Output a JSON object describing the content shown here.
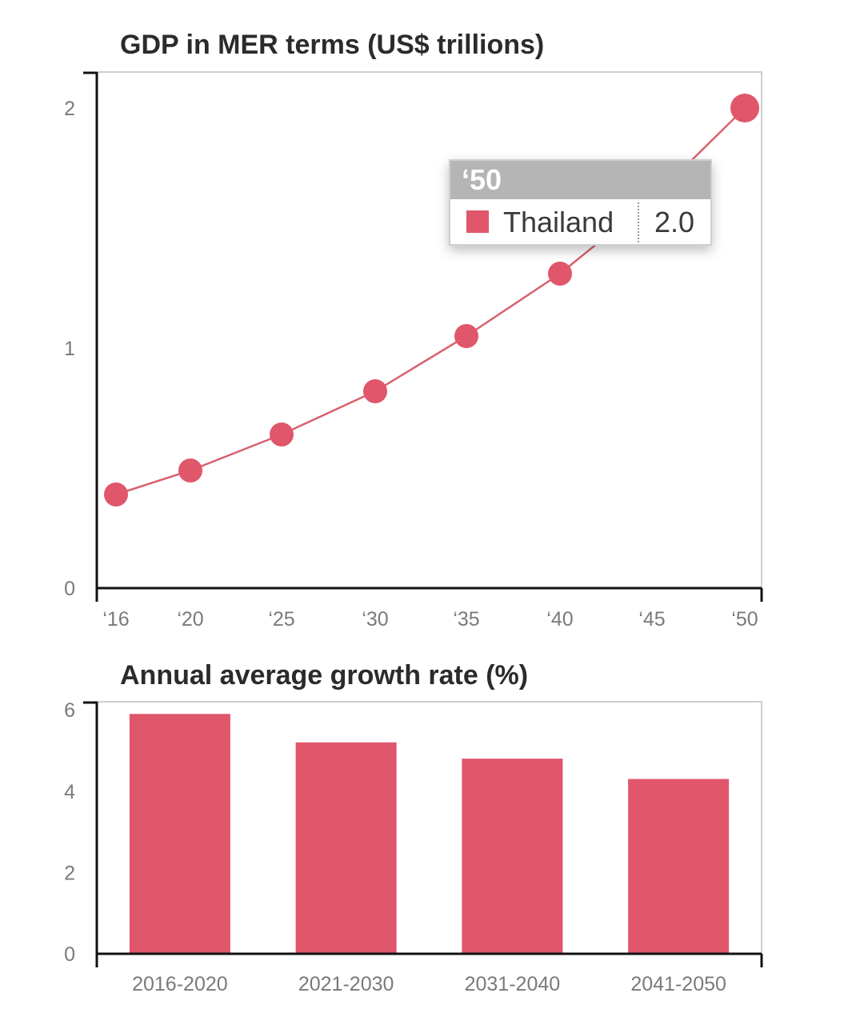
{
  "colors": {
    "series": "#e0566b",
    "line": "#d9606f"
  },
  "chart_data": [
    {
      "type": "line",
      "title": "GDP in MER terms (US$ trillions)",
      "x": [
        "‘16",
        "‘20",
        "‘25",
        "‘30",
        "‘35",
        "‘40",
        "‘45",
        "‘50"
      ],
      "series": [
        {
          "name": "Thailand",
          "values": [
            0.39,
            0.49,
            0.64,
            0.82,
            1.05,
            1.31,
            1.62,
            2.0
          ]
        }
      ],
      "yticks": [
        "0",
        "1",
        "2"
      ],
      "ylim": [
        0,
        2.15
      ],
      "grid": false,
      "tooltip": {
        "header": "‘50",
        "label": "Thailand",
        "value": "2.0"
      }
    },
    {
      "type": "bar",
      "title": "Annual average growth rate (%)",
      "categories": [
        "2016-2020",
        "2021-2030",
        "2031-2040",
        "2041-2050"
      ],
      "values": [
        5.9,
        5.2,
        4.8,
        4.3
      ],
      "yticks": [
        "0",
        "2",
        "4",
        "6"
      ],
      "ylim": [
        0,
        6.2
      ],
      "grid": false
    }
  ]
}
